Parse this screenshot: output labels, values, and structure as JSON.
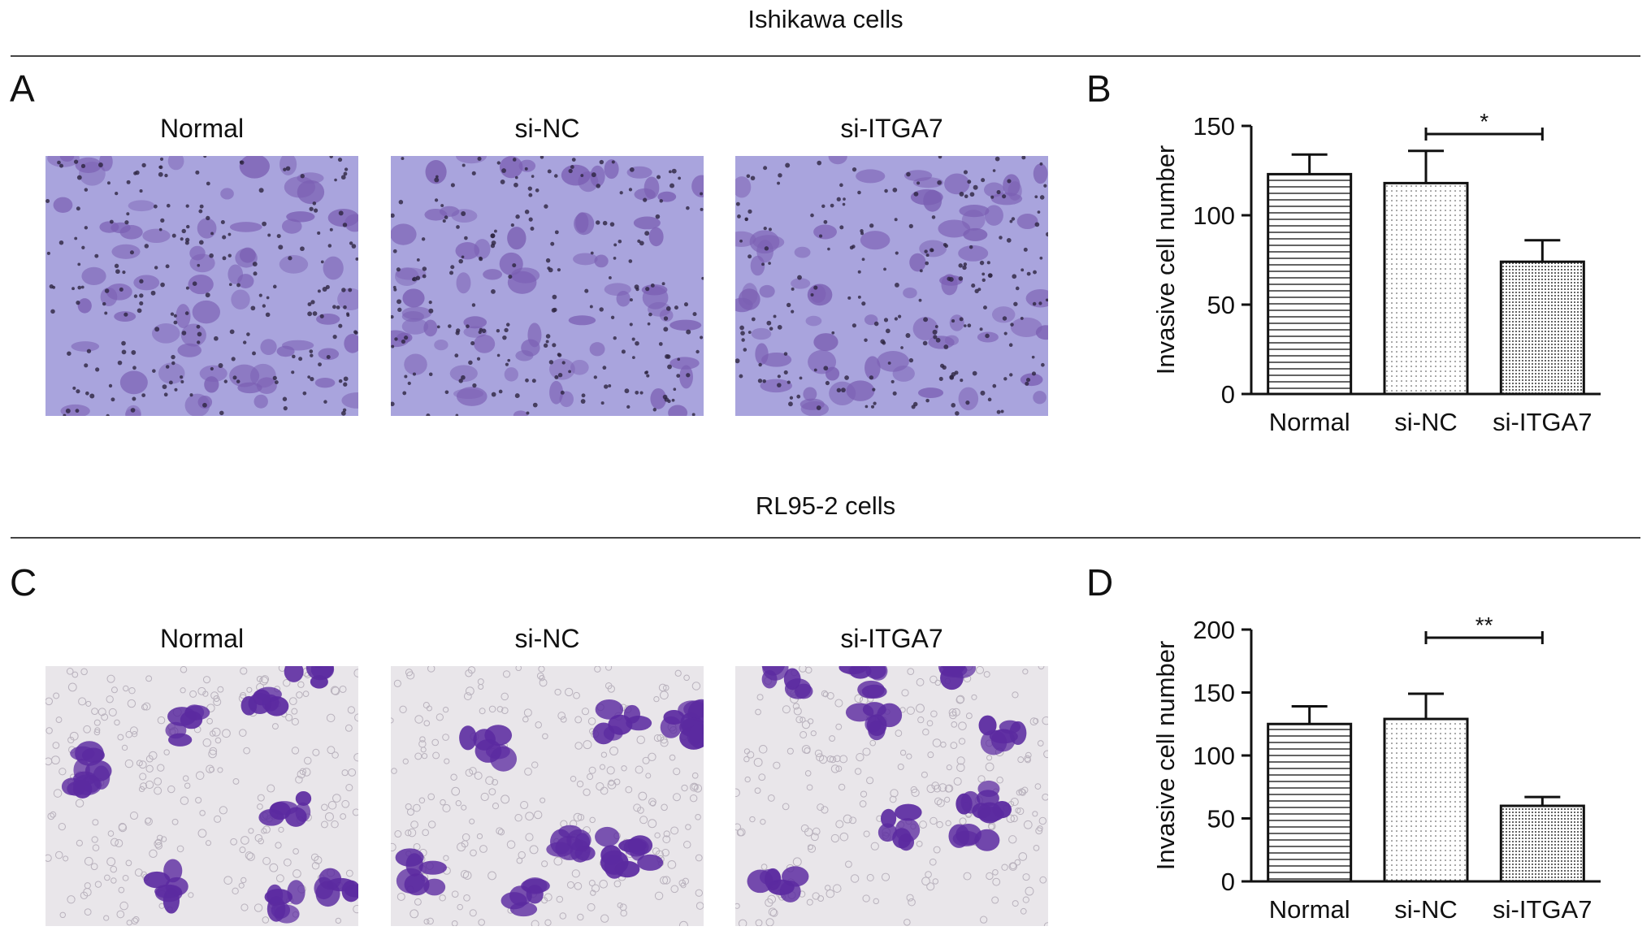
{
  "sections": [
    {
      "title": "Ishikawa cells",
      "image_letter": "A",
      "chart_letter": "B",
      "image_labels": [
        "Normal",
        "si-NC",
        "si-ITGA7"
      ],
      "image_style": "purple"
    },
    {
      "title": "RL95-2 cells",
      "image_letter": "C",
      "chart_letter": "D",
      "image_labels": [
        "Normal",
        "si-NC",
        "si-ITGA7"
      ],
      "image_style": "light"
    }
  ],
  "colors": {
    "bar_fill": "#ffffff",
    "bar_stroke": "#111111",
    "micro_purple_bg": "#a9a4dd",
    "micro_purple_cell": "#7b5fb3",
    "micro_light_bg": "#e9e6ea",
    "micro_light_cell": "#5b2aa0"
  },
  "chart_data": [
    {
      "type": "bar",
      "panel": "B",
      "categories": [
        "Normal",
        "si-NC",
        "si-ITGA7"
      ],
      "values": [
        123,
        118,
        74
      ],
      "errors": [
        11,
        18,
        12
      ],
      "patterns": [
        "horizontal-lines",
        "dots",
        "dense-dots"
      ],
      "ylabel": "Invasive cell number",
      "ylim": [
        0,
        150
      ],
      "yticks": [
        0,
        50,
        100,
        150
      ],
      "significance": {
        "from": "si-NC",
        "to": "si-ITGA7",
        "label": "*"
      }
    },
    {
      "type": "bar",
      "panel": "D",
      "categories": [
        "Normal",
        "si-NC",
        "si-ITGA7"
      ],
      "values": [
        125,
        129,
        60
      ],
      "errors": [
        14,
        20,
        7
      ],
      "patterns": [
        "horizontal-lines",
        "dots",
        "dense-dots"
      ],
      "ylabel": "Invasive cell number",
      "ylim": [
        0,
        200
      ],
      "yticks": [
        0,
        50,
        100,
        150,
        200
      ],
      "significance": {
        "from": "si-NC",
        "to": "si-ITGA7",
        "label": "**"
      }
    }
  ]
}
